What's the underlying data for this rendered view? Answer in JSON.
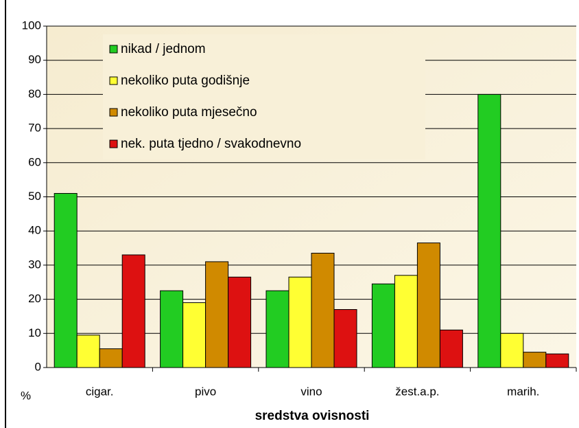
{
  "chart_data": {
    "type": "bar",
    "categories": [
      "cigar.",
      "pivo",
      "vino",
      "žest.a.p.",
      "marih."
    ],
    "series": [
      {
        "name": "nikad / jednom",
        "color": "#22cc22",
        "values": [
          51,
          22.5,
          22.5,
          24.5,
          80
        ]
      },
      {
        "name": "nekoliko puta godišnje",
        "color": "#ffff33",
        "values": [
          9.5,
          19,
          26.5,
          27,
          10
        ]
      },
      {
        "name": "nekoliko puta mjesečno",
        "color": "#d08a00",
        "values": [
          5.5,
          31,
          33.5,
          36.5,
          4.5
        ]
      },
      {
        "name": "nek. puta tjedno / svakodnevno",
        "color": "#dd1111",
        "values": [
          33,
          26.5,
          17,
          11,
          4
        ]
      }
    ],
    "ylabel": "%",
    "xlabel": "sredstva ovisnosti",
    "ylim": [
      0,
      100
    ],
    "yticks": [
      0,
      10,
      20,
      30,
      40,
      50,
      60,
      70,
      80,
      90,
      100
    ],
    "grid": true,
    "legend": "top-left"
  }
}
